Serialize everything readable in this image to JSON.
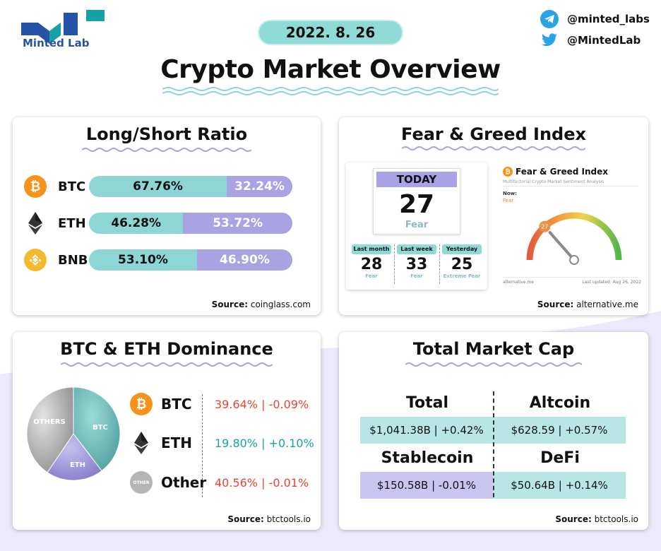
{
  "brand": {
    "logo_text": "Minted Lab",
    "telegram": "@minted_labs",
    "twitter": "@MintedLab",
    "colors": {
      "navy": "#2653a5",
      "teal": "#16a1a4",
      "mint": "#8dd6d5",
      "lavender": "#a9a3e4"
    }
  },
  "header": {
    "date": "2022. 8. 26",
    "title": "Crypto Market Overview"
  },
  "long_short": {
    "title": "Long/Short Ratio",
    "source_label": "Source:",
    "source": "coinglass.com",
    "rows": [
      {
        "coin": "BTC",
        "icon": "bitcoin-icon",
        "long": 67.76,
        "short": 32.24,
        "long_label": "67.76%",
        "short_label": "32.24%"
      },
      {
        "coin": "ETH",
        "icon": "ethereum-icon",
        "long": 46.28,
        "short": 53.72,
        "long_label": "46.28%",
        "short_label": "53.72%"
      },
      {
        "coin": "BNB",
        "icon": "bnb-icon",
        "long": 53.1,
        "short": 46.9,
        "long_label": "53.10%",
        "short_label": "46.90%"
      }
    ]
  },
  "fear_greed": {
    "title": "Fear & Greed Index",
    "source_label": "Source:",
    "source": "alternative.me",
    "today_label": "TODAY",
    "today_value": "27",
    "today_class": "Fear",
    "history": [
      {
        "label": "Last month",
        "value": "28",
        "class": "Fear"
      },
      {
        "label": "Last week",
        "value": "33",
        "class": "Fear"
      },
      {
        "label": "Yesterday",
        "value": "25",
        "class": "Extreme Fear"
      }
    ],
    "widget": {
      "title": "Fear & Greed Index",
      "subtitle": "Multifactorial Crypto Market Sentiment Analysis",
      "now_label": "Now:",
      "now_class": "Fear",
      "value": 27,
      "footer_left": "alternative.me",
      "footer_right": "Last updated: Aug 26, 2022"
    }
  },
  "dominance": {
    "title": "BTC & ETH Dominance",
    "source_label": "Source:",
    "source": "btctools.io",
    "other_icon_text": "OTHER",
    "pie_labels": {
      "others": "OTHERS",
      "btc": "BTC",
      "eth": "ETH"
    },
    "rows": [
      {
        "name": "BTC",
        "icon": "bitcoin-icon",
        "value": "39.64% | -0.09%",
        "share": 39.64,
        "color": "#e8442e"
      },
      {
        "name": "ETH",
        "icon": "ethereum-icon",
        "value": "19.80% | +0.10%",
        "share": 19.8,
        "color": "#16a1a4"
      },
      {
        "name": "Other",
        "icon": "other-icon",
        "value": "40.56% | -0.01%",
        "share": 40.56,
        "color": "#e8442e"
      }
    ]
  },
  "market_cap": {
    "title": "Total Market Cap",
    "source_label": "Source:",
    "source": "btctools.io",
    "cells": [
      {
        "label": "Total",
        "value": "$1,041.38B | +0.42%"
      },
      {
        "label": "Altcoin",
        "value": "$628.59 | +0.57%"
      },
      {
        "label": "Stablecoin",
        "value": "$150.58B | -0.01%"
      },
      {
        "label": "DeFi",
        "value": "$50.64B | +0.14%"
      }
    ]
  }
}
